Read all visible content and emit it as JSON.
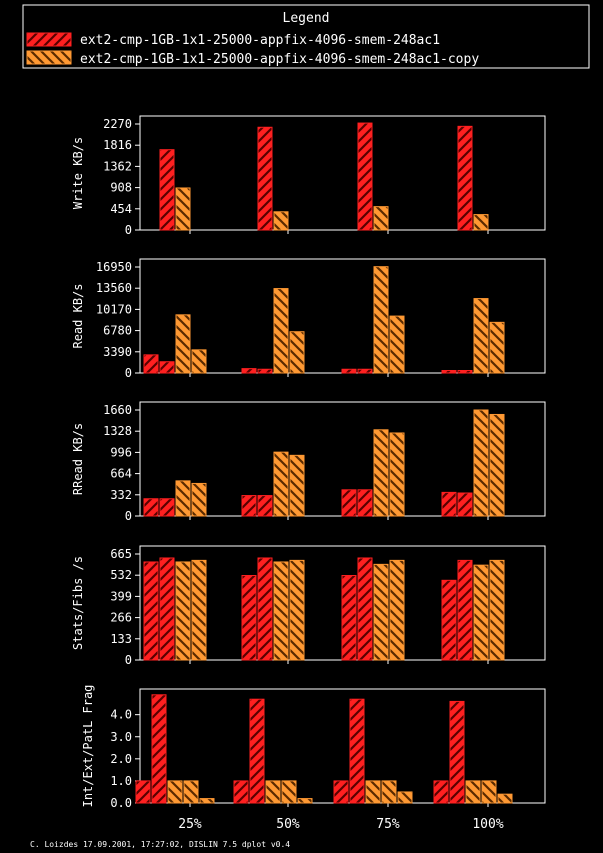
{
  "legend": {
    "title": "Legend",
    "entries": [
      {
        "label": "ext2-cmp-1GB-1x1-25000-appfix-4096-smem-248ac1",
        "color": "#ff2020",
        "hatch_color": "#aa0000"
      },
      {
        "label": "ext2-cmp-1GB-1x1-25000-appfix-4096-smem-248ac1-copy",
        "color": "#ff9933",
        "hatch_color": "#aa5500"
      }
    ]
  },
  "footer": "C. Loizdes 17.09.2001, 17:27:02, DISLIN 7.5 dplot v0.4",
  "chart_data": [
    {
      "type": "bar",
      "ylabel": "Write KB/s",
      "categories": [
        "25%",
        "50%",
        "75%",
        "100%"
      ],
      "ylim": [
        0,
        2270
      ],
      "yticks": [
        "0",
        "454",
        "908",
        "1362",
        "1816",
        "2270"
      ],
      "series": [
        {
          "name": "ext2-cmp-1GB-1x1-25000-appfix-4096-smem-248ac1",
          "values": [
            [
              1720
            ],
            [
              2200
            ],
            [
              2290
            ],
            [
              2220
            ]
          ]
        },
        {
          "name": "ext2-cmp-1GB-1x1-25000-appfix-4096-smem-248ac1-copy",
          "values": [
            [
              900
            ],
            [
              390
            ],
            [
              500
            ],
            [
              330
            ]
          ]
        }
      ]
    },
    {
      "type": "bar",
      "ylabel": "Read KB/s",
      "categories": [
        "25%",
        "50%",
        "75%",
        "100%"
      ],
      "ylim": [
        0,
        16950
      ],
      "yticks": [
        "0",
        "3390",
        "6780",
        "10170",
        "13560",
        "16950"
      ],
      "series": [
        {
          "name": "ext2-cmp-1GB-1x1-25000-appfix-4096-smem-248ac1",
          "values": [
            [
              2900,
              1800
            ],
            [
              700,
              600
            ],
            [
              600,
              600
            ],
            [
              400,
              400
            ]
          ]
        },
        {
          "name": "ext2-cmp-1GB-1x1-25000-appfix-4096-smem-248ac1-copy",
          "values": [
            [
              9300,
              3700
            ],
            [
              13500,
              6600
            ],
            [
              17000,
              9100
            ],
            [
              11900,
              8100
            ]
          ]
        }
      ]
    },
    {
      "type": "bar",
      "ylabel": "RRead KB/s",
      "categories": [
        "25%",
        "50%",
        "75%",
        "100%"
      ],
      "ylim": [
        0,
        1660
      ],
      "yticks": [
        "0",
        "332",
        "664",
        "996",
        "1328",
        "1660"
      ],
      "series": [
        {
          "name": "ext2-cmp-1GB-1x1-25000-appfix-4096-smem-248ac1",
          "values": [
            [
              270,
              270
            ],
            [
              320,
              320
            ],
            [
              410,
              410
            ],
            [
              370,
              360
            ]
          ]
        },
        {
          "name": "ext2-cmp-1GB-1x1-25000-appfix-4096-smem-248ac1-copy",
          "values": [
            [
              550,
              510
            ],
            [
              1000,
              950
            ],
            [
              1350,
              1300
            ],
            [
              1660,
              1590
            ]
          ]
        }
      ]
    },
    {
      "type": "bar",
      "ylabel": "Stats/Fibs /s",
      "categories": [
        "25%",
        "50%",
        "75%",
        "100%"
      ],
      "ylim": [
        0,
        665
      ],
      "yticks": [
        "0",
        "133",
        "266",
        "399",
        "532",
        "665"
      ],
      "series": [
        {
          "name": "ext2-cmp-1GB-1x1-25000-appfix-4096-smem-248ac1",
          "values": [
            [
              615,
              640
            ],
            [
              530,
              640
            ],
            [
              530,
              640
            ],
            [
              500,
              625
            ]
          ]
        },
        {
          "name": "ext2-cmp-1GB-1x1-25000-appfix-4096-smem-248ac1-copy",
          "values": [
            [
              615,
              625
            ],
            [
              615,
              625
            ],
            [
              600,
              625
            ],
            [
              595,
              625
            ]
          ]
        }
      ]
    },
    {
      "type": "bar",
      "ylabel": "Int/Ext/PatL Frag",
      "categories": [
        "25%",
        "50%",
        "75%",
        "100%"
      ],
      "ylim": [
        0,
        4.8
      ],
      "yticks": [
        "0.0",
        "1.0",
        "2.0",
        "3.0",
        "4.0"
      ],
      "series": [
        {
          "name": "ext2-cmp-1GB-1x1-25000-appfix-4096-smem-248ac1",
          "values": [
            [
              1.0,
              4.9
            ],
            [
              1.0,
              4.7
            ],
            [
              1.0,
              4.7
            ],
            [
              1.0,
              4.6
            ]
          ]
        },
        {
          "name": "ext2-cmp-1GB-1x1-25000-appfix-4096-smem-248ac1-copy",
          "values": [
            [
              1.0,
              1.0,
              0.2
            ],
            [
              1.0,
              1.0,
              0.2
            ],
            [
              1.0,
              1.0,
              0.5
            ],
            [
              1.0,
              1.0,
              0.4
            ]
          ]
        }
      ]
    }
  ]
}
